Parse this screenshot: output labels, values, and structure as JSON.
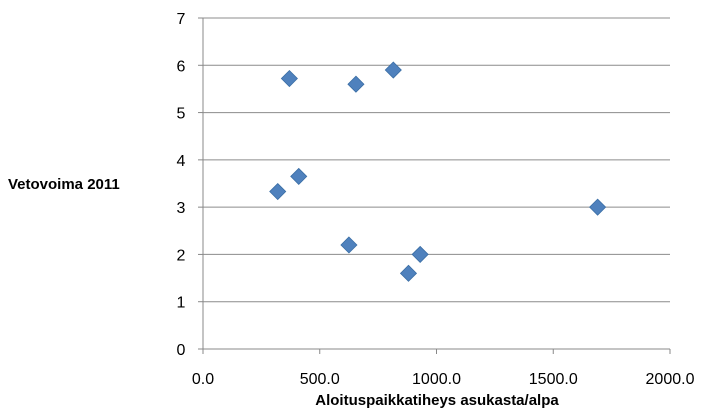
{
  "chart_data": {
    "type": "scatter",
    "title": "",
    "xlabel": "Aloituspaikkatiheys asukasta/alpa",
    "ylabel": "Vetovoima 2011",
    "xlim": [
      0,
      2000
    ],
    "ylim": [
      0,
      7
    ],
    "x_ticks": [
      "0.0",
      "500.0",
      "1000.0",
      "1500.0",
      "2000.0"
    ],
    "y_ticks": [
      "0",
      "1",
      "2",
      "3",
      "4",
      "5",
      "6",
      "7"
    ],
    "grid": "horizontal",
    "legend": "none",
    "marker": "diamond",
    "marker_color": "#4f81bd",
    "series": [
      {
        "points": [
          {
            "x": 320,
            "y": 3.33
          },
          {
            "x": 370,
            "y": 5.72
          },
          {
            "x": 410,
            "y": 3.65
          },
          {
            "x": 625,
            "y": 2.2
          },
          {
            "x": 655,
            "y": 5.6
          },
          {
            "x": 815,
            "y": 5.9
          },
          {
            "x": 880,
            "y": 1.6
          },
          {
            "x": 930,
            "y": 2.0
          },
          {
            "x": 1690,
            "y": 3.0
          }
        ]
      }
    ]
  }
}
